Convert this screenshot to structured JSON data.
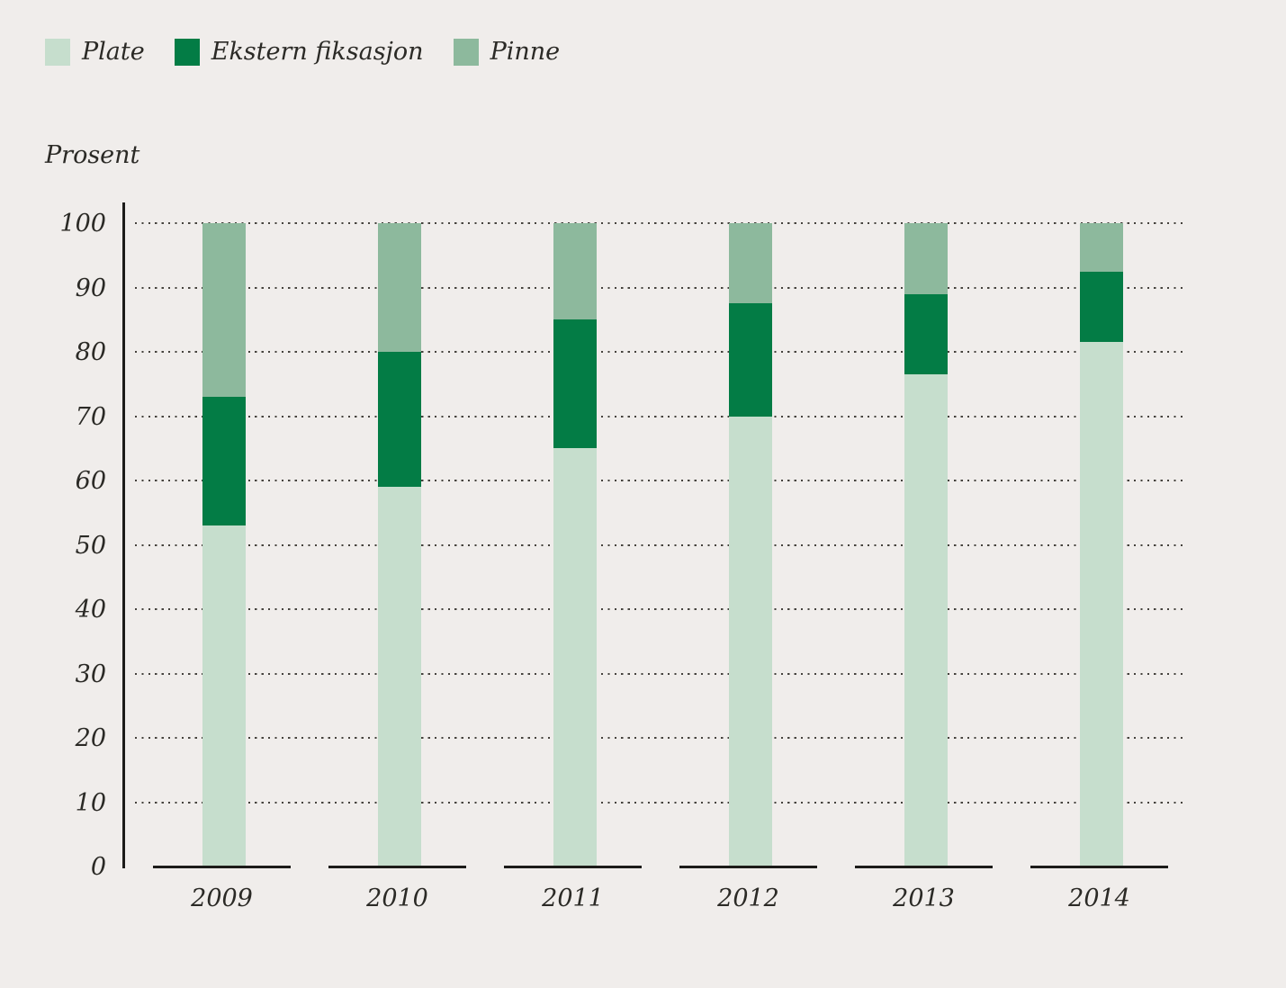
{
  "chart": {
    "y_axis_title": "Prosent",
    "legend": [
      {
        "label": "Plate",
        "color": "#c6decd"
      },
      {
        "label": "Ekstern fiksasjon",
        "color": "#037c45"
      },
      {
        "label": "Pinne",
        "color": "#8db99d"
      }
    ]
  },
  "chart_data": {
    "type": "bar",
    "stacked": true,
    "title": "",
    "xlabel": "",
    "ylabel": "Prosent",
    "categories": [
      "2009",
      "2010",
      "2011",
      "2012",
      "2013",
      "2014"
    ],
    "series": [
      {
        "name": "Plate",
        "color": "#c6decd",
        "values": [
          53,
          59,
          65,
          70,
          76.5,
          81.5
        ]
      },
      {
        "name": "Ekstern fiksasjon",
        "color": "#037c45",
        "values": [
          20,
          21,
          20,
          17.5,
          12.5,
          11
        ]
      },
      {
        "name": "Pinne",
        "color": "#8db99d",
        "values": [
          27,
          20,
          15,
          12.5,
          11,
          7.5
        ]
      }
    ],
    "stack_totals": [
      100,
      100,
      100,
      100,
      100,
      100
    ],
    "ylim": [
      0,
      100
    ],
    "yticks": [
      0,
      10,
      20,
      30,
      40,
      50,
      60,
      70,
      80,
      90,
      100
    ],
    "grid": "horizontal-dotted",
    "legend_position": "top-left"
  },
  "colors": {
    "background": "#f0edeb",
    "text": "#2b2a26",
    "axis": "#1c1b19",
    "grid_dots": "#45423d"
  }
}
